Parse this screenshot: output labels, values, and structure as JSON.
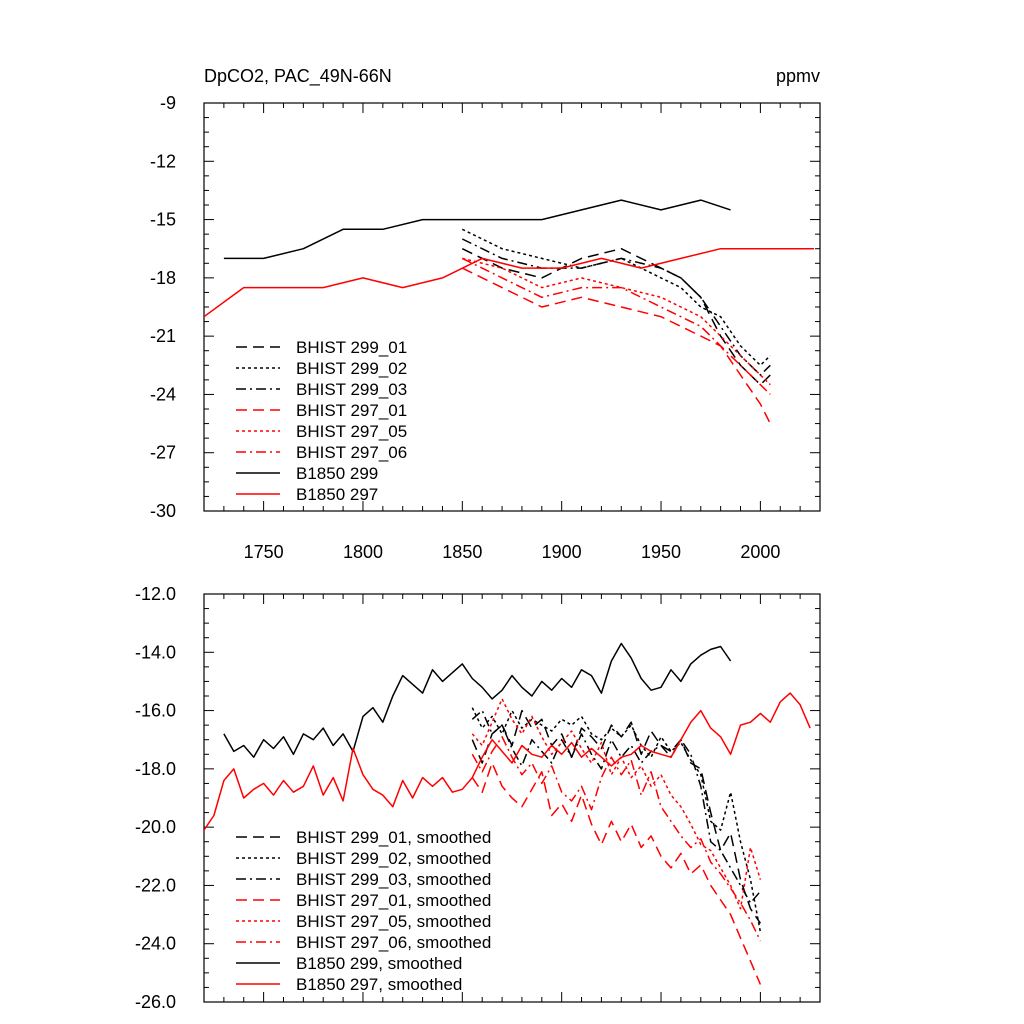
{
  "chart_data": [
    {
      "type": "line",
      "title": "DpCO2, PAC_49N-66N",
      "units": "ppmv",
      "xlim": [
        1720,
        2030
      ],
      "ylim": [
        -30,
        -9
      ],
      "xticks": [
        1750,
        1800,
        1850,
        1900,
        1950,
        2000
      ],
      "xtick_labels": [
        "1750",
        "1800",
        "1850",
        "1900",
        "1950",
        "2000"
      ],
      "yticks": [
        -30,
        -27,
        -24,
        -21,
        -18,
        -15,
        -12,
        -9
      ],
      "ytick_labels": [
        "-30",
        "-27",
        "-24",
        "-21",
        "-18",
        "-15",
        "-12",
        "-9"
      ],
      "legend_placement": "lower-left",
      "series": [
        {
          "name": "BHIST 299_01",
          "color": "#000000",
          "dash": "dashed",
          "x": [
            1850,
            1870,
            1890,
            1910,
            1930,
            1950,
            1960,
            1970,
            1980,
            1990,
            2000,
            2005
          ],
          "y": [
            -16.5,
            -17.5,
            -18.0,
            -17.0,
            -16.5,
            -17.5,
            -18.0,
            -19.0,
            -21.0,
            -22.5,
            -23.5,
            -23.0
          ]
        },
        {
          "name": "BHIST 299_02",
          "color": "#000000",
          "dash": "dotted",
          "x": [
            1850,
            1870,
            1890,
            1910,
            1930,
            1950,
            1960,
            1970,
            1980,
            1990,
            2000,
            2005
          ],
          "y": [
            -15.5,
            -16.5,
            -17.0,
            -17.5,
            -17.0,
            -18.0,
            -18.5,
            -19.5,
            -20.0,
            -21.5,
            -22.5,
            -22.0
          ]
        },
        {
          "name": "BHIST 299_03",
          "color": "#000000",
          "dash": "dashdot",
          "x": [
            1850,
            1870,
            1890,
            1910,
            1930,
            1950,
            1960,
            1970,
            1980,
            1990,
            2000,
            2005
          ],
          "y": [
            -16.0,
            -17.0,
            -17.5,
            -17.5,
            -17.0,
            -17.5,
            -18.0,
            -19.0,
            -20.5,
            -22.0,
            -23.0,
            -22.5
          ]
        },
        {
          "name": "BHIST 297_01",
          "color": "#ff0000",
          "dash": "dashed",
          "x": [
            1850,
            1870,
            1890,
            1910,
            1930,
            1950,
            1960,
            1970,
            1980,
            1990,
            2000,
            2005
          ],
          "y": [
            -17.5,
            -18.5,
            -19.5,
            -19.0,
            -19.5,
            -20.0,
            -20.5,
            -21.0,
            -21.5,
            -23.0,
            -24.5,
            -25.5
          ]
        },
        {
          "name": "BHIST 297_05",
          "color": "#ff0000",
          "dash": "dotted",
          "x": [
            1850,
            1870,
            1890,
            1910,
            1930,
            1950,
            1960,
            1970,
            1980,
            1990,
            2000,
            2005
          ],
          "y": [
            -17.0,
            -17.5,
            -18.5,
            -18.0,
            -18.5,
            -19.0,
            -19.5,
            -20.0,
            -21.0,
            -22.0,
            -23.0,
            -23.5
          ]
        },
        {
          "name": "BHIST 297_06",
          "color": "#ff0000",
          "dash": "dashdot",
          "x": [
            1850,
            1870,
            1890,
            1910,
            1930,
            1950,
            1960,
            1970,
            1980,
            1990,
            2000,
            2005
          ],
          "y": [
            -17.0,
            -18.0,
            -19.0,
            -18.5,
            -18.5,
            -19.5,
            -20.0,
            -20.5,
            -21.5,
            -22.5,
            -23.5,
            -24.0
          ]
        },
        {
          "name": "B1850 299",
          "color": "#000000",
          "dash": "solid",
          "x": [
            1730,
            1750,
            1770,
            1790,
            1810,
            1830,
            1850,
            1870,
            1890,
            1910,
            1930,
            1950,
            1970,
            1985
          ],
          "y": [
            -17.0,
            -17.0,
            -16.5,
            -15.5,
            -15.5,
            -15.0,
            -15.0,
            -15.0,
            -15.0,
            -14.5,
            -14.0,
            -14.5,
            -14.0,
            -14.5
          ]
        },
        {
          "name": "B1850 297",
          "color": "#ff0000",
          "dash": "solid",
          "x": [
            1720,
            1740,
            1760,
            1780,
            1800,
            1820,
            1840,
            1860,
            1880,
            1900,
            1920,
            1940,
            1960,
            1980,
            2000,
            2027
          ],
          "y": [
            -20.0,
            -18.5,
            -18.5,
            -18.5,
            -18.0,
            -18.5,
            -18.0,
            -17.0,
            -17.5,
            -17.5,
            -17.0,
            -17.5,
            -17.0,
            -16.5,
            -16.5,
            -16.5
          ]
        }
      ]
    },
    {
      "type": "line",
      "title": "",
      "xlim": [
        1720,
        2030
      ],
      "ylim": [
        -26.0,
        -12.0
      ],
      "xticks": [
        1750,
        1800,
        1850,
        1900,
        1950,
        2000
      ],
      "yticks": [
        -26.0,
        -24.0,
        -22.0,
        -20.0,
        -18.0,
        -16.0,
        -14.0,
        -12.0
      ],
      "ytick_labels": [
        "-26.0",
        "-24.0",
        "-22.0",
        "-20.0",
        "-18.0",
        "-16.0",
        "-14.0",
        "-12.0"
      ],
      "legend_placement": "lower-left",
      "series": [
        {
          "name": "BHIST 299_01, smoothed",
          "color": "#000000",
          "dash": "dashed",
          "x": [
            1855,
            1860,
            1865,
            1870,
            1875,
            1880,
            1885,
            1890,
            1895,
            1900,
            1905,
            1910,
            1915,
            1920,
            1925,
            1930,
            1935,
            1940,
            1945,
            1950,
            1955,
            1960,
            1965,
            1970,
            1975,
            1980,
            1985,
            1990,
            1995,
            2000
          ],
          "y": [
            -17.0,
            -17.8,
            -16.8,
            -16.5,
            -17.2,
            -16.0,
            -16.6,
            -16.3,
            -17.2,
            -16.8,
            -17.6,
            -16.6,
            -16.9,
            -17.3,
            -16.5,
            -16.9,
            -16.4,
            -17.5,
            -16.7,
            -17.2,
            -17.4,
            -17.0,
            -17.8,
            -18.0,
            -19.5,
            -20.8,
            -20.2,
            -21.8,
            -22.8,
            -23.3
          ]
        },
        {
          "name": "BHIST 299_02, smoothed",
          "color": "#000000",
          "dash": "dotted",
          "x": [
            1855,
            1860,
            1865,
            1870,
            1875,
            1880,
            1885,
            1890,
            1895,
            1900,
            1905,
            1910,
            1915,
            1920,
            1925,
            1930,
            1935,
            1940,
            1945,
            1950,
            1955,
            1960,
            1965,
            1970,
            1975,
            1980,
            1985,
            1990,
            1995,
            2000
          ],
          "y": [
            -15.9,
            -16.6,
            -16.2,
            -16.8,
            -16.0,
            -16.6,
            -16.3,
            -16.5,
            -16.7,
            -16.3,
            -16.5,
            -16.2,
            -16.8,
            -17.0,
            -16.6,
            -16.9,
            -16.5,
            -17.2,
            -17.6,
            -16.9,
            -17.4,
            -17.1,
            -17.7,
            -18.2,
            -19.8,
            -20.1,
            -18.8,
            -20.5,
            -21.8,
            -23.6
          ]
        },
        {
          "name": "BHIST 299_03, smoothed",
          "color": "#000000",
          "dash": "dashdot",
          "x": [
            1855,
            1860,
            1865,
            1870,
            1875,
            1880,
            1885,
            1890,
            1895,
            1900,
            1905,
            1910,
            1915,
            1920,
            1925,
            1930,
            1935,
            1940,
            1945,
            1950,
            1955,
            1960,
            1965,
            1970,
            1975,
            1980,
            1985,
            1990,
            1995,
            2000
          ],
          "y": [
            -16.3,
            -16.0,
            -16.8,
            -16.5,
            -17.3,
            -17.9,
            -17.0,
            -17.4,
            -17.8,
            -17.0,
            -17.6,
            -16.8,
            -17.5,
            -18.0,
            -17.0,
            -17.6,
            -17.2,
            -17.8,
            -17.4,
            -17.2,
            -17.6,
            -17.0,
            -17.5,
            -18.6,
            -20.5,
            -20.8,
            -21.4,
            -22.0,
            -22.6,
            -22.2
          ]
        },
        {
          "name": "BHIST 297_01, smoothed",
          "color": "#ff0000",
          "dash": "dashed",
          "x": [
            1855,
            1860,
            1865,
            1870,
            1875,
            1880,
            1885,
            1890,
            1895,
            1900,
            1905,
            1910,
            1915,
            1920,
            1925,
            1930,
            1935,
            1940,
            1945,
            1950,
            1955,
            1960,
            1965,
            1970,
            1975,
            1980,
            1985,
            1990,
            1995,
            2000
          ],
          "y": [
            -18.3,
            -18.8,
            -17.8,
            -18.6,
            -19.0,
            -19.3,
            -18.7,
            -18.1,
            -19.6,
            -19.2,
            -19.8,
            -18.9,
            -19.9,
            -20.6,
            -19.8,
            -20.5,
            -19.9,
            -20.7,
            -20.3,
            -21.0,
            -21.4,
            -20.9,
            -21.6,
            -21.3,
            -22.0,
            -22.5,
            -23.0,
            -23.8,
            -24.6,
            -25.4
          ]
        },
        {
          "name": "BHIST 297_05, smoothed",
          "color": "#ff0000",
          "dash": "dotted",
          "x": [
            1855,
            1860,
            1865,
            1870,
            1875,
            1880,
            1885,
            1890,
            1895,
            1900,
            1905,
            1910,
            1915,
            1920,
            1925,
            1930,
            1935,
            1940,
            1945,
            1950,
            1955,
            1960,
            1965,
            1970,
            1975,
            1980,
            1985,
            1990,
            1995,
            2000
          ],
          "y": [
            -16.8,
            -17.2,
            -16.4,
            -15.6,
            -16.3,
            -16.8,
            -16.2,
            -16.9,
            -17.5,
            -17.1,
            -16.7,
            -17.3,
            -17.8,
            -17.1,
            -18.2,
            -17.6,
            -18.3,
            -17.9,
            -18.6,
            -18.2,
            -18.9,
            -19.3,
            -19.9,
            -20.6,
            -20.8,
            -21.4,
            -22.0,
            -22.8,
            -20.7,
            -21.8
          ]
        },
        {
          "name": "BHIST 297_06, smoothed",
          "color": "#ff0000",
          "dash": "dashdot",
          "x": [
            1855,
            1860,
            1865,
            1870,
            1875,
            1880,
            1885,
            1890,
            1895,
            1900,
            1905,
            1910,
            1915,
            1920,
            1925,
            1930,
            1935,
            1940,
            1945,
            1950,
            1955,
            1960,
            1965,
            1970,
            1975,
            1980,
            1985,
            1990,
            1995,
            2000
          ],
          "y": [
            -17.5,
            -18.1,
            -17.4,
            -16.9,
            -17.6,
            -18.2,
            -17.8,
            -18.5,
            -17.9,
            -18.8,
            -19.1,
            -18.6,
            -19.4,
            -18.3,
            -17.6,
            -18.2,
            -17.7,
            -18.9,
            -18.1,
            -19.3,
            -19.8,
            -20.3,
            -20.7,
            -20.4,
            -21.2,
            -21.6,
            -22.1,
            -22.6,
            -23.2,
            -23.9
          ]
        },
        {
          "name": "B1850 299, smoothed",
          "color": "#000000",
          "dash": "solid",
          "x": [
            1730,
            1735,
            1740,
            1745,
            1750,
            1755,
            1760,
            1765,
            1770,
            1775,
            1780,
            1785,
            1790,
            1795,
            1800,
            1805,
            1810,
            1815,
            1820,
            1825,
            1830,
            1835,
            1840,
            1845,
            1850,
            1855,
            1860,
            1865,
            1870,
            1875,
            1880,
            1885,
            1890,
            1895,
            1900,
            1905,
            1910,
            1915,
            1920,
            1925,
            1930,
            1935,
            1940,
            1945,
            1950,
            1955,
            1960,
            1965,
            1970,
            1975,
            1980,
            1985
          ],
          "y": [
            -16.8,
            -17.4,
            -17.2,
            -17.6,
            -17.0,
            -17.3,
            -16.9,
            -17.5,
            -16.8,
            -17.0,
            -16.6,
            -17.2,
            -16.8,
            -17.4,
            -16.2,
            -15.9,
            -16.4,
            -15.5,
            -14.8,
            -15.1,
            -15.4,
            -14.6,
            -15.0,
            -14.7,
            -14.4,
            -14.9,
            -15.2,
            -15.6,
            -15.3,
            -14.8,
            -15.2,
            -15.5,
            -15.0,
            -15.3,
            -14.9,
            -15.2,
            -14.6,
            -14.8,
            -15.4,
            -14.3,
            -13.7,
            -14.2,
            -14.9,
            -15.3,
            -15.2,
            -14.6,
            -15.0,
            -14.4,
            -14.1,
            -13.9,
            -13.8,
            -14.3
          ]
        },
        {
          "name": "B1850 297, smoothed",
          "color": "#ff0000",
          "dash": "solid",
          "x": [
            1720,
            1725,
            1730,
            1735,
            1740,
            1745,
            1750,
            1755,
            1760,
            1765,
            1770,
            1775,
            1780,
            1785,
            1790,
            1795,
            1800,
            1805,
            1810,
            1815,
            1820,
            1825,
            1830,
            1835,
            1840,
            1845,
            1850,
            1855,
            1860,
            1865,
            1870,
            1875,
            1880,
            1885,
            1890,
            1895,
            1900,
            1905,
            1910,
            1915,
            1920,
            1925,
            1930,
            1935,
            1940,
            1945,
            1950,
            1955,
            1960,
            1965,
            1970,
            1975,
            1980,
            1985,
            1990,
            1995,
            2000,
            2005,
            2010,
            2015,
            2020,
            2025
          ],
          "y": [
            -20.1,
            -19.6,
            -18.4,
            -18.0,
            -19.0,
            -18.7,
            -18.5,
            -18.9,
            -18.4,
            -18.8,
            -18.6,
            -17.9,
            -18.9,
            -18.3,
            -19.1,
            -17.3,
            -18.2,
            -18.7,
            -18.9,
            -19.3,
            -18.4,
            -19.0,
            -18.3,
            -18.6,
            -18.3,
            -18.8,
            -18.7,
            -18.3,
            -17.6,
            -17.0,
            -17.4,
            -17.8,
            -17.2,
            -17.5,
            -17.6,
            -17.2,
            -17.5,
            -17.1,
            -17.6,
            -17.3,
            -17.6,
            -17.9,
            -17.6,
            -17.5,
            -17.2,
            -17.4,
            -17.5,
            -17.6,
            -17.0,
            -16.4,
            -16.0,
            -16.6,
            -16.9,
            -17.5,
            -16.5,
            -16.4,
            -16.1,
            -16.4,
            -15.7,
            -15.4,
            -15.8,
            -16.6
          ]
        }
      ]
    }
  ]
}
